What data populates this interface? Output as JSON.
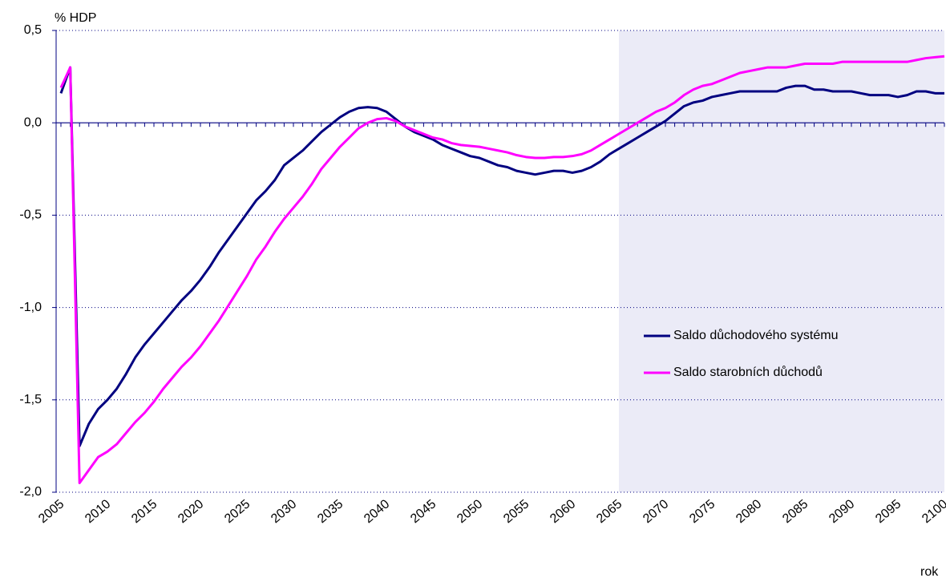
{
  "chart_data": {
    "type": "line",
    "y_label": "% HDP",
    "x_label": "rok",
    "x": [
      2005,
      2006,
      2007,
      2008,
      2009,
      2010,
      2011,
      2012,
      2013,
      2014,
      2015,
      2016,
      2017,
      2018,
      2019,
      2020,
      2021,
      2022,
      2023,
      2024,
      2025,
      2026,
      2027,
      2028,
      2029,
      2030,
      2031,
      2032,
      2033,
      2034,
      2035,
      2036,
      2037,
      2038,
      2039,
      2040,
      2041,
      2042,
      2043,
      2044,
      2045,
      2046,
      2047,
      2048,
      2049,
      2050,
      2051,
      2052,
      2053,
      2054,
      2055,
      2056,
      2057,
      2058,
      2059,
      2060,
      2061,
      2062,
      2063,
      2064,
      2065,
      2066,
      2067,
      2068,
      2069,
      2070,
      2071,
      2072,
      2073,
      2074,
      2075,
      2076,
      2077,
      2078,
      2079,
      2080,
      2081,
      2082,
      2083,
      2084,
      2085,
      2086,
      2087,
      2088,
      2089,
      2090,
      2091,
      2092,
      2093,
      2094,
      2095,
      2096,
      2097,
      2098,
      2099,
      2100
    ],
    "series": [
      {
        "name": "Saldo důchodového systému",
        "color": "#000080",
        "values": [
          0.16,
          0.3,
          -1.75,
          -1.63,
          -1.55,
          -1.5,
          -1.44,
          -1.36,
          -1.27,
          -1.2,
          -1.14,
          -1.08,
          -1.02,
          -0.96,
          -0.91,
          -0.85,
          -0.78,
          -0.7,
          -0.63,
          -0.56,
          -0.49,
          -0.42,
          -0.37,
          -0.31,
          -0.23,
          -0.19,
          -0.15,
          -0.1,
          -0.05,
          -0.01,
          0.03,
          0.06,
          0.08,
          0.085,
          0.08,
          0.06,
          0.02,
          -0.02,
          -0.05,
          -0.07,
          -0.09,
          -0.12,
          -0.14,
          -0.16,
          -0.18,
          -0.19,
          -0.21,
          -0.23,
          -0.24,
          -0.26,
          -0.27,
          -0.28,
          -0.27,
          -0.26,
          -0.26,
          -0.27,
          -0.26,
          -0.24,
          -0.21,
          -0.17,
          -0.14,
          -0.11,
          -0.08,
          -0.05,
          -0.02,
          0.01,
          0.05,
          0.09,
          0.11,
          0.12,
          0.14,
          0.15,
          0.16,
          0.17,
          0.17,
          0.17,
          0.17,
          0.17,
          0.19,
          0.2,
          0.2,
          0.18,
          0.18,
          0.17,
          0.17,
          0.17,
          0.16,
          0.15,
          0.15,
          0.15,
          0.14,
          0.15,
          0.17,
          0.17,
          0.16,
          0.16
        ]
      },
      {
        "name": "Saldo starobních důchodů",
        "color": "#ff00ff",
        "values": [
          0.19,
          0.3,
          -1.95,
          -1.88,
          -1.81,
          -1.78,
          -1.74,
          -1.68,
          -1.62,
          -1.57,
          -1.51,
          -1.44,
          -1.38,
          -1.32,
          -1.27,
          -1.21,
          -1.14,
          -1.07,
          -0.99,
          -0.91,
          -0.83,
          -0.74,
          -0.67,
          -0.59,
          -0.52,
          -0.46,
          -0.4,
          -0.33,
          -0.25,
          -0.19,
          -0.13,
          -0.08,
          -0.03,
          0.0,
          0.02,
          0.025,
          0.01,
          -0.02,
          -0.04,
          -0.06,
          -0.08,
          -0.09,
          -0.11,
          -0.12,
          -0.125,
          -0.13,
          -0.14,
          -0.15,
          -0.16,
          -0.175,
          -0.185,
          -0.19,
          -0.19,
          -0.185,
          -0.185,
          -0.18,
          -0.17,
          -0.15,
          -0.12,
          -0.09,
          -0.06,
          -0.03,
          0.0,
          0.03,
          0.06,
          0.08,
          0.11,
          0.15,
          0.18,
          0.2,
          0.21,
          0.23,
          0.25,
          0.27,
          0.28,
          0.29,
          0.3,
          0.3,
          0.3,
          0.31,
          0.32,
          0.32,
          0.32,
          0.32,
          0.33,
          0.33,
          0.33,
          0.33,
          0.33,
          0.33,
          0.33,
          0.33,
          0.34,
          0.35,
          0.355,
          0.36
        ]
      }
    ],
    "xlim": [
      2005,
      2100
    ],
    "xticks": [
      2005,
      2010,
      2015,
      2020,
      2025,
      2030,
      2035,
      2040,
      2045,
      2050,
      2055,
      2060,
      2065,
      2070,
      2075,
      2080,
      2085,
      2090,
      2095,
      2100
    ],
    "ylim": [
      -2.0,
      0.5
    ],
    "yticks": [
      {
        "value": -2.0,
        "label": "-2,0"
      },
      {
        "value": -1.5,
        "label": "-1,5"
      },
      {
        "value": -1.0,
        "label": "-1,0"
      },
      {
        "value": -0.5,
        "label": "-0,5"
      },
      {
        "value": 0.0,
        "label": "0,0"
      },
      {
        "value": 0.5,
        "label": "0,5"
      }
    ],
    "grid": true,
    "shaded_region": [
      2065,
      2100
    ],
    "shade_color": "#ebebf7",
    "legend": "right"
  }
}
